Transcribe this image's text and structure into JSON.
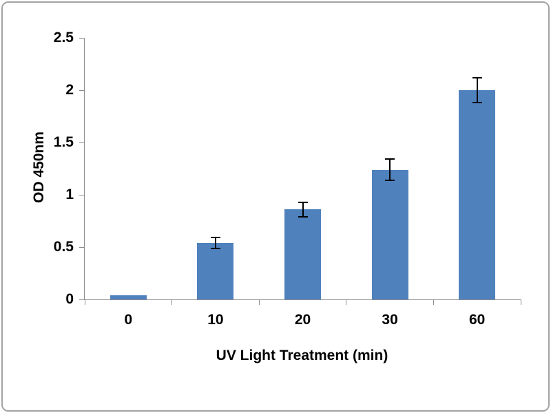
{
  "chart_data": {
    "type": "bar",
    "categories": [
      "0",
      "10",
      "20",
      "30",
      "60"
    ],
    "values": [
      0.04,
      0.54,
      0.86,
      1.24,
      2.0
    ],
    "errors": [
      0,
      0.05,
      0.07,
      0.1,
      0.12
    ],
    "title": "",
    "xlabel": "UV Light Treatment (min)",
    "ylabel": "OD 450nm",
    "ylim": [
      0,
      2.5
    ],
    "yticks": [
      0,
      0.5,
      1,
      1.5,
      2,
      2.5
    ],
    "grid": false,
    "legend": false,
    "colors": {
      "bar": "#4f81bd",
      "error_bar": "#000000",
      "axis": "#8c8c8c",
      "text": "#000000",
      "frame_border": "#a3a3a3",
      "background": "#ffffff"
    }
  }
}
